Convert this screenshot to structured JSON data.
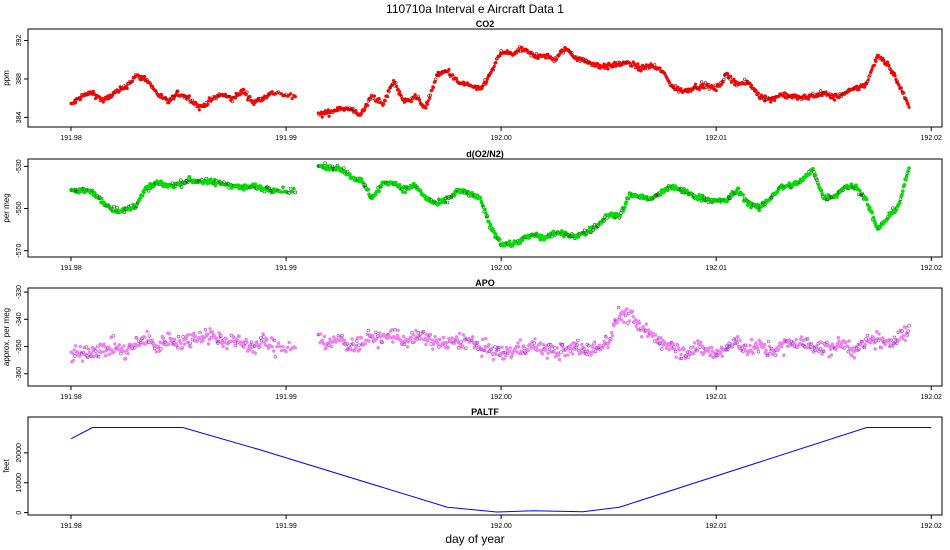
{
  "title": "110710a   Interval e Aircraft Data 1",
  "xlabel": "day of year",
  "colors": {
    "co2": "#ff0000",
    "co2_dark": "#8b0000",
    "o2n2": "#00dd00",
    "o2n2_dark": "#006400",
    "apo": "#ee82ee",
    "apo_dark": "#9932cc",
    "paltf": "#0000ff"
  },
  "chart_data": [
    {
      "type": "scatter",
      "title": "CO2",
      "ylabel": "ppm",
      "xlim": [
        191.978,
        192.0205
      ],
      "ylim": [
        383.0,
        393.2
      ],
      "xticks": [
        191.98,
        191.99,
        192.0,
        192.01,
        192.02
      ],
      "xtick_labels": [
        "191.98",
        "191.99",
        "192.00",
        "192.01",
        "192.02"
      ],
      "yticks": [
        384,
        388,
        392
      ],
      "ytick_labels": [
        "384",
        "388",
        "392"
      ],
      "series": [
        {
          "name": "CO2",
          "segments": [
            {
              "x": [
                191.98,
                191.9805,
                191.981,
                191.9815,
                191.982,
                191.9825,
                191.983,
                191.9835,
                191.984,
                191.9845,
                191.985,
                191.9855,
                191.986,
                191.9865,
                191.987,
                191.9875,
                191.988,
                191.9885,
                191.989,
                191.9895,
                191.9905
              ],
              "y": [
                385.3,
                386.2,
                386.6,
                385.7,
                386.5,
                387.1,
                388.3,
                388.0,
                386.5,
                385.6,
                386.5,
                386.0,
                385.0,
                385.8,
                386.4,
                385.9,
                386.8,
                385.5,
                386.2,
                386.6,
                386.0
              ]
            },
            {
              "x": [
                191.9915,
                191.992,
                191.9925,
                191.993,
                191.9935,
                191.994,
                191.9945,
                191.995,
                191.9955,
                191.996,
                191.9965,
                191.997,
                191.9975,
                191.998,
                191.9985,
                191.999,
                191.9995,
                192.0,
                192.0005,
                192.001,
                192.0015,
                192.002,
                192.0025,
                192.003,
                192.0035,
                192.004,
                192.0045,
                192.005,
                192.0055,
                192.006,
                192.0065,
                192.007,
                192.0075,
                192.008,
                192.0085,
                192.009,
                192.0095,
                192.01,
                192.0105,
                192.011,
                192.0115,
                192.012,
                192.0125,
                192.013,
                192.0135,
                192.014,
                192.0145,
                192.015,
                192.0155,
                192.016,
                192.0165,
                192.017,
                192.0175,
                192.018,
                192.0185,
                192.019
              ],
              "y": [
                384.3,
                384.5,
                385.0,
                384.8,
                384.3,
                386.3,
                385.3,
                387.8,
                385.6,
                386.2,
                385.0,
                388.3,
                388.9,
                387.6,
                387.4,
                386.8,
                388.5,
                390.8,
                390.6,
                391.1,
                390.4,
                390.5,
                390.0,
                391.2,
                390.2,
                389.8,
                389.4,
                389.3,
                389.6,
                389.6,
                389.1,
                389.4,
                388.8,
                387.1,
                386.7,
                387.2,
                387.3,
                387.0,
                388.4,
                387.5,
                387.6,
                386.3,
                385.8,
                386.4,
                386.2,
                386.0,
                386.3,
                386.5,
                386.1,
                386.5,
                387.0,
                387.5,
                390.5,
                389.5,
                387.4,
                385.0
              ]
            }
          ]
        }
      ]
    },
    {
      "type": "scatter",
      "title": "d(O2/N2)",
      "ylabel": "per meg",
      "xlim": [
        191.978,
        192.0205
      ],
      "ylim": [
        -573.0,
        -526.5
      ],
      "xticks": [
        191.98,
        191.99,
        192.0,
        192.01,
        192.02
      ],
      "xtick_labels": [
        "191.98",
        "191.99",
        "192.00",
        "192.01",
        "192.02"
      ],
      "yticks": [
        -570,
        -550,
        -530
      ],
      "ytick_labels": [
        "-570",
        "-550",
        "-530"
      ],
      "series": [
        {
          "name": "d(O2/N2)",
          "segments": [
            {
              "x": [
                191.98,
                191.9805,
                191.981,
                191.9815,
                191.982,
                191.9825,
                191.983,
                191.9835,
                191.984,
                191.9845,
                191.985,
                191.9855,
                191.986,
                191.9865,
                191.987,
                191.9875,
                191.988,
                191.9885,
                191.989,
                191.9895,
                191.9905
              ],
              "y": [
                -542.0,
                -541.0,
                -542.5,
                -547.0,
                -550.5,
                -551.0,
                -548.5,
                -540.5,
                -538.0,
                -539.0,
                -538.5,
                -536.5,
                -537.0,
                -537.5,
                -538.0,
                -539.0,
                -540.0,
                -539.5,
                -540.5,
                -541.0,
                -542.0
              ]
            },
            {
              "x": [
                191.9915,
                191.992,
                191.9925,
                191.993,
                191.9935,
                191.994,
                191.9945,
                191.995,
                191.9955,
                191.996,
                191.9965,
                191.997,
                191.9975,
                191.998,
                191.9985,
                191.999,
                191.9995,
                192.0,
                192.0005,
                192.001,
                192.0015,
                192.002,
                192.0025,
                192.003,
                192.0035,
                192.004,
                192.0045,
                192.005,
                192.0055,
                192.006,
                192.0065,
                192.007,
                192.0075,
                192.008,
                192.0085,
                192.009,
                192.0095,
                192.01,
                192.0105,
                192.011,
                192.0115,
                192.012,
                192.0125,
                192.013,
                192.0135,
                192.014,
                192.0145,
                192.015,
                192.0155,
                192.016,
                192.0165,
                192.017,
                192.0175,
                192.018,
                192.0185,
                192.019
              ],
              "y": [
                -529.5,
                -531.0,
                -530.5,
                -534.5,
                -537.0,
                -545.0,
                -538.0,
                -537.5,
                -541.0,
                -539.0,
                -545.0,
                -548.0,
                -546.0,
                -541.5,
                -543.0,
                -545.0,
                -558.5,
                -566.5,
                -567.0,
                -564.5,
                -562.5,
                -564.0,
                -561.5,
                -562.5,
                -563.0,
                -561.0,
                -558.0,
                -552.5,
                -554.0,
                -543.0,
                -544.5,
                -545.5,
                -542.0,
                -539.5,
                -542.0,
                -544.0,
                -545.5,
                -546.5,
                -546.0,
                -541.0,
                -547.5,
                -550.0,
                -545.0,
                -540.0,
                -539.0,
                -536.5,
                -531.5,
                -545.0,
                -544.0,
                -539.5,
                -540.0,
                -546.0,
                -560.0,
                -554.0,
                -548.0,
                -529.5
              ]
            }
          ]
        }
      ]
    },
    {
      "type": "scatter",
      "title": "APO",
      "ylabel": "approx. per meg",
      "xlim": [
        191.978,
        192.0205
      ],
      "ylim": [
        -364.5,
        -328.5
      ],
      "xticks": [
        191.98,
        191.99,
        192.0,
        192.01,
        192.02
      ],
      "xtick_labels": [
        "191.98",
        "191.99",
        "192.00",
        "192.01",
        "192.02"
      ],
      "yticks": [
        -360,
        -350,
        -340,
        -330
      ],
      "ytick_labels": [
        "-360",
        "-350",
        "-340",
        "-330"
      ],
      "series": [
        {
          "name": "APO",
          "segments": [
            {
              "x": [
                191.98,
                191.9805,
                191.981,
                191.9815,
                191.982,
                191.9825,
                191.983,
                191.9835,
                191.984,
                191.9845,
                191.985,
                191.9855,
                191.986,
                191.9865,
                191.987,
                191.9875,
                191.988,
                191.9885,
                191.989,
                191.9895,
                191.9905
              ],
              "y": [
                -354.0,
                -352.0,
                -351.5,
                -351.0,
                -350.0,
                -352.0,
                -349.5,
                -347.0,
                -350.5,
                -347.0,
                -348.5,
                -347.5,
                -346.0,
                -345.5,
                -348.0,
                -347.5,
                -349.0,
                -350.0,
                -348.0,
                -350.5,
                -349.0
              ]
            },
            {
              "x": [
                191.9915,
                191.992,
                191.9925,
                191.993,
                191.9935,
                191.994,
                191.9945,
                191.995,
                191.9955,
                191.996,
                191.9965,
                191.997,
                191.9975,
                191.998,
                191.9985,
                191.999,
                191.9995,
                192.0,
                192.0005,
                192.001,
                192.0015,
                192.002,
                192.0025,
                192.003,
                192.0035,
                192.004,
                192.0045,
                192.005,
                192.0055,
                192.006,
                192.0065,
                192.007,
                192.0075,
                192.008,
                192.0085,
                192.009,
                192.0095,
                192.01,
                192.0105,
                192.011,
                192.0115,
                192.012,
                192.0125,
                192.013,
                192.0135,
                192.014,
                192.0145,
                192.015,
                192.0155,
                192.016,
                192.0165,
                192.017,
                192.0175,
                192.018,
                192.0185,
                192.019
              ],
              "y": [
                -346.0,
                -349.5,
                -347.0,
                -350.0,
                -348.5,
                -346.5,
                -347.0,
                -345.5,
                -348.0,
                -347.0,
                -346.5,
                -348.5,
                -349.5,
                -347.5,
                -348.0,
                -350.5,
                -351.0,
                -353.0,
                -351.5,
                -350.5,
                -349.5,
                -351.0,
                -351.5,
                -352.0,
                -350.0,
                -351.5,
                -350.5,
                -347.5,
                -338.0,
                -338.5,
                -344.0,
                -345.5,
                -348.5,
                -349.5,
                -352.5,
                -350.5,
                -351.0,
                -353.0,
                -350.5,
                -348.5,
                -351.0,
                -350.0,
                -351.5,
                -350.5,
                -348.5,
                -349.0,
                -349.5,
                -351.0,
                -350.0,
                -349.0,
                -351.5,
                -349.0,
                -347.0,
                -350.0,
                -345.5,
                -345.0
              ]
            }
          ]
        }
      ]
    },
    {
      "type": "line",
      "title": "PALTF",
      "ylabel": "feet",
      "xlim": [
        191.978,
        192.0205
      ],
      "ylim": [
        -800,
        32000
      ],
      "xticks": [
        191.98,
        191.99,
        192.0,
        192.01,
        192.02
      ],
      "xtick_labels": [
        "191.98",
        "191.99",
        "192.00",
        "192.01",
        "192.02"
      ],
      "yticks": [
        0,
        10000,
        20000
      ],
      "ytick_labels": [
        "0",
        "10000",
        "20000"
      ],
      "series": [
        {
          "name": "PALTF",
          "x": [
            191.98,
            191.981,
            191.9825,
            191.9852,
            191.9888,
            191.9975,
            191.9998,
            192.0015,
            192.0038,
            192.0055,
            192.017,
            192.02
          ],
          "y": [
            24700,
            28500,
            28500,
            28500,
            21000,
            1800,
            200,
            600,
            300,
            1800,
            28500,
            28500
          ]
        }
      ]
    }
  ]
}
